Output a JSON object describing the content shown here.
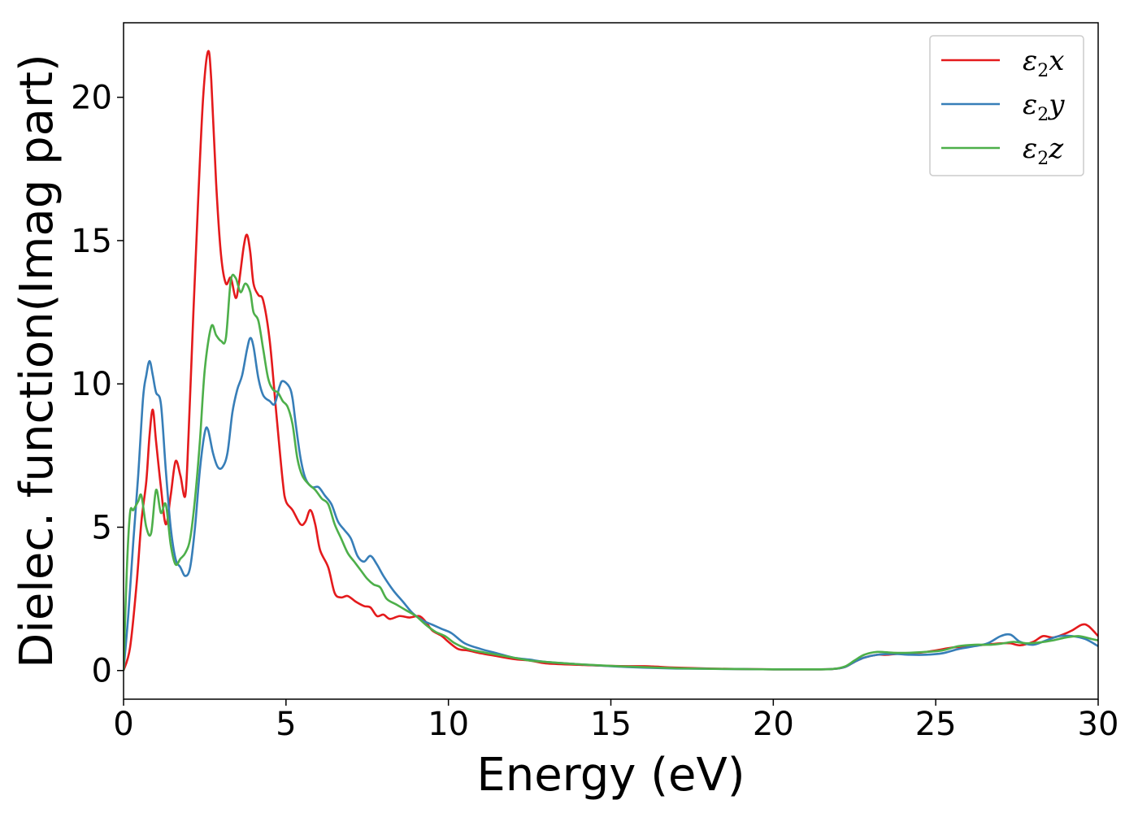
{
  "chart_data": {
    "type": "line",
    "xlabel": "Energy (eV)",
    "ylabel": "Dielec. function(Imag part)",
    "xlim": [
      0,
      30
    ],
    "ylim": [
      -1,
      22.6
    ],
    "xticks": [
      0,
      5,
      10,
      15,
      20,
      25,
      30
    ],
    "yticks": [
      0,
      5,
      10,
      15,
      20
    ],
    "grid": false,
    "legend_position": "top-right",
    "series": [
      {
        "name": "ε2x",
        "symbol": "ε",
        "sub": "2",
        "var": "x",
        "color": "#e41a1c",
        "x": [
          0,
          0.2,
          0.4,
          0.55,
          0.7,
          0.8,
          0.9,
          1.0,
          1.15,
          1.3,
          1.45,
          1.6,
          1.75,
          1.9,
          2.0,
          2.15,
          2.3,
          2.45,
          2.6,
          2.7,
          2.85,
          3.0,
          3.15,
          3.3,
          3.45,
          3.55,
          3.7,
          3.8,
          3.9,
          4.0,
          4.15,
          4.3,
          4.5,
          4.7,
          4.9,
          5.0,
          5.2,
          5.45,
          5.6,
          5.75,
          5.9,
          6.05,
          6.3,
          6.5,
          6.7,
          6.9,
          7.15,
          7.4,
          7.6,
          7.8,
          8.0,
          8.2,
          8.5,
          8.8,
          9.1,
          9.3,
          9.5,
          9.8,
          10.0,
          10.3,
          10.6,
          11.0,
          11.5,
          12.0,
          12.5,
          13.0,
          14.0,
          15.0,
          16.0,
          16.3,
          17.0,
          18.0,
          19.0,
          20.0,
          21.0,
          21.8,
          22.2,
          22.5,
          22.8,
          23.2,
          23.5,
          24.0,
          24.5,
          25.0,
          25.5,
          26.0,
          26.5,
          27.0,
          27.3,
          27.6,
          28.0,
          28.3,
          28.6,
          28.9,
          29.2,
          29.5,
          29.7,
          30.0
        ],
        "y": [
          0,
          0.8,
          3.0,
          5.2,
          6.6,
          8.2,
          9.1,
          8.0,
          6.4,
          5.1,
          6.1,
          7.3,
          6.8,
          6.1,
          8.2,
          12.5,
          16.5,
          20.0,
          21.6,
          20.6,
          17.0,
          14.5,
          13.5,
          13.7,
          13.0,
          13.5,
          14.8,
          15.2,
          14.6,
          13.5,
          13.1,
          12.9,
          11.5,
          9.0,
          6.6,
          5.9,
          5.6,
          5.1,
          5.2,
          5.6,
          5.1,
          4.2,
          3.6,
          2.7,
          2.55,
          2.6,
          2.4,
          2.25,
          2.2,
          1.9,
          1.95,
          1.8,
          1.9,
          1.85,
          1.9,
          1.7,
          1.4,
          1.2,
          1.0,
          0.75,
          0.7,
          0.6,
          0.5,
          0.4,
          0.35,
          0.25,
          0.2,
          0.16,
          0.15,
          0.14,
          0.1,
          0.07,
          0.05,
          0.04,
          0.04,
          0.05,
          0.12,
          0.3,
          0.45,
          0.55,
          0.55,
          0.6,
          0.62,
          0.7,
          0.8,
          0.85,
          0.9,
          0.95,
          0.95,
          0.88,
          1.0,
          1.2,
          1.15,
          1.25,
          1.4,
          1.6,
          1.55,
          1.2
        ]
      },
      {
        "name": "ε2y",
        "symbol": "ε",
        "sub": "2",
        "var": "y",
        "color": "#377eb8",
        "x": [
          0,
          0.15,
          0.3,
          0.45,
          0.6,
          0.7,
          0.8,
          0.9,
          1.0,
          1.15,
          1.3,
          1.45,
          1.6,
          1.75,
          1.9,
          2.05,
          2.2,
          2.35,
          2.5,
          2.6,
          2.75,
          2.9,
          3.05,
          3.2,
          3.35,
          3.5,
          3.65,
          3.8,
          3.9,
          4.0,
          4.15,
          4.3,
          4.5,
          4.65,
          4.8,
          4.9,
          5.1,
          5.2,
          5.3,
          5.45,
          5.6,
          5.8,
          6.0,
          6.2,
          6.4,
          6.6,
          6.8,
          7.0,
          7.2,
          7.4,
          7.6,
          7.8,
          8.0,
          8.3,
          8.6,
          8.9,
          9.2,
          9.5,
          9.8,
          10.1,
          10.5,
          11.0,
          11.5,
          12.0,
          12.5,
          13.0,
          14.0,
          15.0,
          16.0,
          17.0,
          18.0,
          19.0,
          20.0,
          21.0,
          21.8,
          22.2,
          22.5,
          22.8,
          23.2,
          23.7,
          24.2,
          24.7,
          25.2,
          25.7,
          26.2,
          26.6,
          27.0,
          27.3,
          27.6,
          28.0,
          28.4,
          28.8,
          29.2,
          29.6,
          30.0
        ],
        "y": [
          0,
          2.0,
          4.5,
          6.8,
          9.5,
          10.3,
          10.8,
          10.3,
          9.7,
          9.3,
          7.0,
          5.0,
          3.9,
          3.6,
          3.3,
          3.6,
          5.0,
          7.0,
          8.3,
          8.4,
          7.6,
          7.1,
          7.1,
          7.6,
          9.0,
          9.8,
          10.3,
          11.2,
          11.6,
          11.3,
          10.2,
          9.6,
          9.4,
          9.3,
          9.9,
          10.1,
          9.9,
          9.5,
          8.6,
          7.4,
          6.7,
          6.4,
          6.4,
          6.1,
          5.8,
          5.2,
          4.9,
          4.6,
          4.0,
          3.8,
          4.0,
          3.7,
          3.3,
          2.8,
          2.4,
          2.0,
          1.75,
          1.6,
          1.45,
          1.3,
          0.95,
          0.75,
          0.6,
          0.45,
          0.38,
          0.3,
          0.22,
          0.15,
          0.1,
          0.07,
          0.06,
          0.05,
          0.04,
          0.04,
          0.05,
          0.12,
          0.3,
          0.45,
          0.55,
          0.58,
          0.55,
          0.55,
          0.6,
          0.75,
          0.85,
          0.95,
          1.2,
          1.25,
          1.0,
          0.9,
          1.05,
          1.2,
          1.2,
          1.1,
          0.85
        ]
      },
      {
        "name": "ε2z",
        "symbol": "ε",
        "sub": "2",
        "var": "z",
        "color": "#4daf4a",
        "x": [
          0,
          0.1,
          0.2,
          0.3,
          0.45,
          0.55,
          0.7,
          0.85,
          1.0,
          1.15,
          1.3,
          1.45,
          1.6,
          1.75,
          1.9,
          2.05,
          2.2,
          2.35,
          2.5,
          2.7,
          2.85,
          3.0,
          3.15,
          3.3,
          3.45,
          3.6,
          3.75,
          3.9,
          4.0,
          4.15,
          4.3,
          4.45,
          4.6,
          4.75,
          4.9,
          5.05,
          5.2,
          5.35,
          5.5,
          5.7,
          5.9,
          6.1,
          6.3,
          6.5,
          6.7,
          6.9,
          7.1,
          7.3,
          7.5,
          7.7,
          7.9,
          8.1,
          8.4,
          8.7,
          9.0,
          9.3,
          9.6,
          9.9,
          10.2,
          10.6,
          11.0,
          11.5,
          12.0,
          12.5,
          13.0,
          14.0,
          15.0,
          16.0,
          17.0,
          18.0,
          19.0,
          20.0,
          21.0,
          21.8,
          22.2,
          22.5,
          22.8,
          23.2,
          23.7,
          24.2,
          24.7,
          25.2,
          25.7,
          26.2,
          26.7,
          27.1,
          27.4,
          27.8,
          28.2,
          28.6,
          29.0,
          29.4,
          29.8,
          30.0
        ],
        "y": [
          0,
          3.5,
          5.5,
          5.6,
          5.9,
          6.1,
          5.0,
          4.8,
          6.3,
          5.5,
          5.8,
          4.4,
          3.7,
          3.9,
          4.1,
          4.6,
          6.0,
          8.0,
          10.5,
          12.0,
          11.7,
          11.5,
          11.6,
          13.6,
          13.7,
          13.2,
          13.5,
          13.2,
          12.5,
          12.2,
          11.2,
          10.2,
          9.8,
          9.7,
          9.4,
          9.2,
          8.6,
          7.4,
          6.8,
          6.5,
          6.3,
          6.0,
          5.8,
          5.1,
          4.6,
          4.1,
          3.8,
          3.5,
          3.2,
          3.0,
          2.9,
          2.5,
          2.3,
          2.1,
          1.9,
          1.6,
          1.35,
          1.2,
          0.95,
          0.75,
          0.65,
          0.55,
          0.45,
          0.35,
          0.3,
          0.22,
          0.16,
          0.12,
          0.08,
          0.06,
          0.05,
          0.04,
          0.04,
          0.05,
          0.14,
          0.35,
          0.55,
          0.65,
          0.62,
          0.62,
          0.65,
          0.7,
          0.85,
          0.9,
          0.9,
          0.95,
          1.0,
          0.95,
          0.98,
          1.05,
          1.15,
          1.2,
          1.1,
          1.05
        ]
      }
    ]
  }
}
